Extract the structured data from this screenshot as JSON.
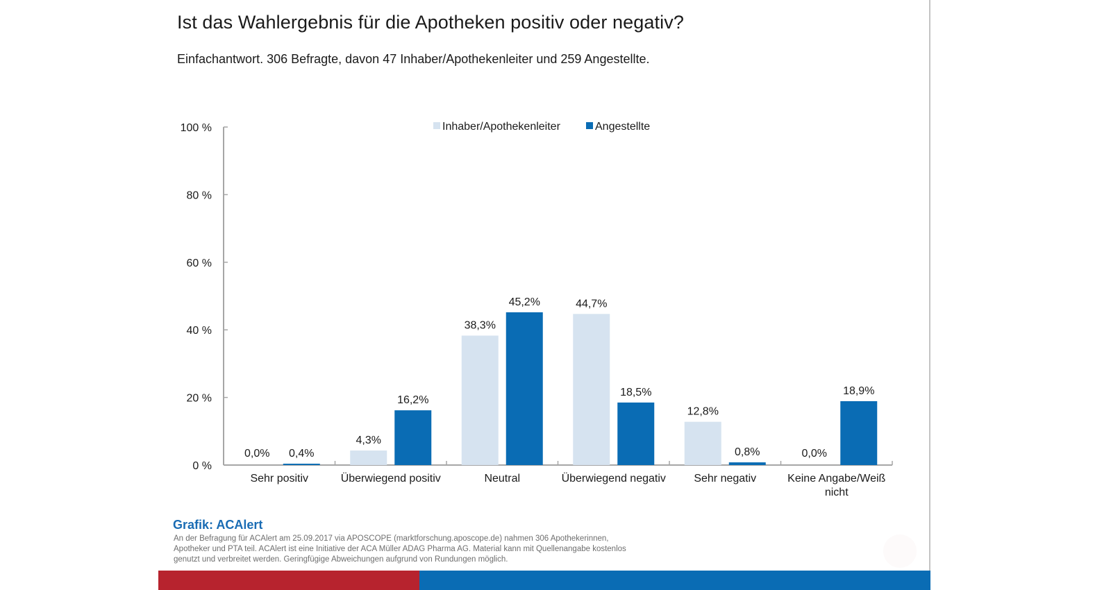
{
  "header": {
    "title": "Ist das Wahlergebnis für die Apotheken positiv oder negativ?",
    "subtitle": "Einfachantwort. 306 Befragte, davon 47 Inhaber/Apothekenleiter und 259 Angestellte."
  },
  "chart_data": {
    "type": "bar",
    "title": "Ist das Wahlergebnis für die Apotheken positiv oder negativ?",
    "subtitle": "Einfachantwort. 306 Befragte, davon 47 Inhaber/Apothekenleiter und 259 Angestellte.",
    "xlabel": "",
    "ylabel": "",
    "ylim": [
      0,
      100
    ],
    "yticks": [
      0,
      20,
      40,
      60,
      80,
      100
    ],
    "ytick_labels": [
      "0 %",
      "20 %",
      "40 %",
      "60 %",
      "80 %",
      "100 %"
    ],
    "grid": false,
    "legend_position": "top-center",
    "categories": [
      [
        "Sehr positiv"
      ],
      [
        "Überwiegend positiv"
      ],
      [
        "Neutral"
      ],
      [
        "Überwiegend negativ"
      ],
      [
        "Sehr negativ"
      ],
      [
        "Keine Angabe/Weiß",
        "nicht"
      ]
    ],
    "series": [
      {
        "name": "Inhaber/Apothekenleiter",
        "color": "#d6e3f0",
        "values": [
          0.0,
          4.3,
          38.3,
          44.7,
          12.8,
          0.0
        ],
        "labels": [
          "0,0%",
          "4,3%",
          "38,3%",
          "44,7%",
          "12,8%",
          "0,0%"
        ]
      },
      {
        "name": "Angestellte",
        "color": "#0a6cb4",
        "values": [
          0.4,
          16.2,
          45.2,
          18.5,
          0.8,
          18.9
        ],
        "labels": [
          "0,4%",
          "16,2%",
          "45,2%",
          "18,5%",
          "0,8%",
          "18,9%"
        ]
      }
    ]
  },
  "footer": {
    "credit": "Grafik: ACAlert",
    "note": "An der Befragung für ACAlert am 25.09.2017 via APOSCOPE (marktforschung.aposcope.de) nahmen 306 Apothekerinnen, Apotheker und PTA teil. ACAlert ist eine Initiative der ACA Müller ADAG Pharma AG. Material kann mit Quellenangabe kostenlos genutzt und verbreitet werden. Geringfügige Abweichungen aufgrund von Rundungen möglich."
  }
}
